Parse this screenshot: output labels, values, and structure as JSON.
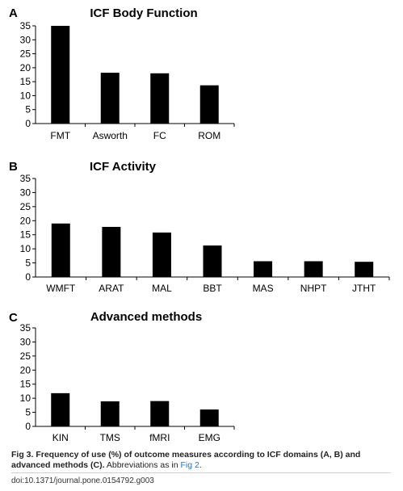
{
  "chart_data": [
    {
      "type": "bar",
      "panel": "A",
      "title": "ICF Body Function",
      "categories": [
        "FMT",
        "Asworth",
        "FC",
        "ROM"
      ],
      "values": [
        35,
        18.2,
        18,
        13.7
      ],
      "ylim": [
        0,
        35
      ],
      "yticks": [
        "0",
        "5",
        "10",
        "15",
        "20",
        "25",
        "30",
        "35"
      ],
      "bar_color": "#000000"
    },
    {
      "type": "bar",
      "panel": "B",
      "title": "ICF Activity",
      "categories": [
        "WMFT",
        "ARAT",
        "MAL",
        "BBT",
        "MAS",
        "NHPT",
        "JTHT"
      ],
      "values": [
        19,
        17.8,
        15.8,
        11.2,
        5.6,
        5.6,
        5.4
      ],
      "ylim": [
        0,
        35
      ],
      "yticks": [
        "0",
        "5",
        "10",
        "15",
        "20",
        "25",
        "30",
        "35"
      ],
      "bar_color": "#000000"
    },
    {
      "type": "bar",
      "panel": "C",
      "title": "Advanced methods",
      "categories": [
        "KIN",
        "TMS",
        "fMRI",
        "EMG"
      ],
      "values": [
        11.8,
        8.9,
        9,
        6
      ],
      "ylim": [
        0,
        35
      ],
      "yticks": [
        "0",
        "5",
        "10",
        "15",
        "20",
        "25",
        "30",
        "35"
      ],
      "bar_color": "#000000"
    }
  ],
  "caption": {
    "label": "Fig 3. Frequency of use (%) of outcome measures according to ICF domains (A, B) and advanced methods (C).",
    "text": " Abbreviations as in ",
    "link": "Fig 2",
    "end": "."
  },
  "doi": "doi:10.1371/journal.pone.0154792.g003"
}
